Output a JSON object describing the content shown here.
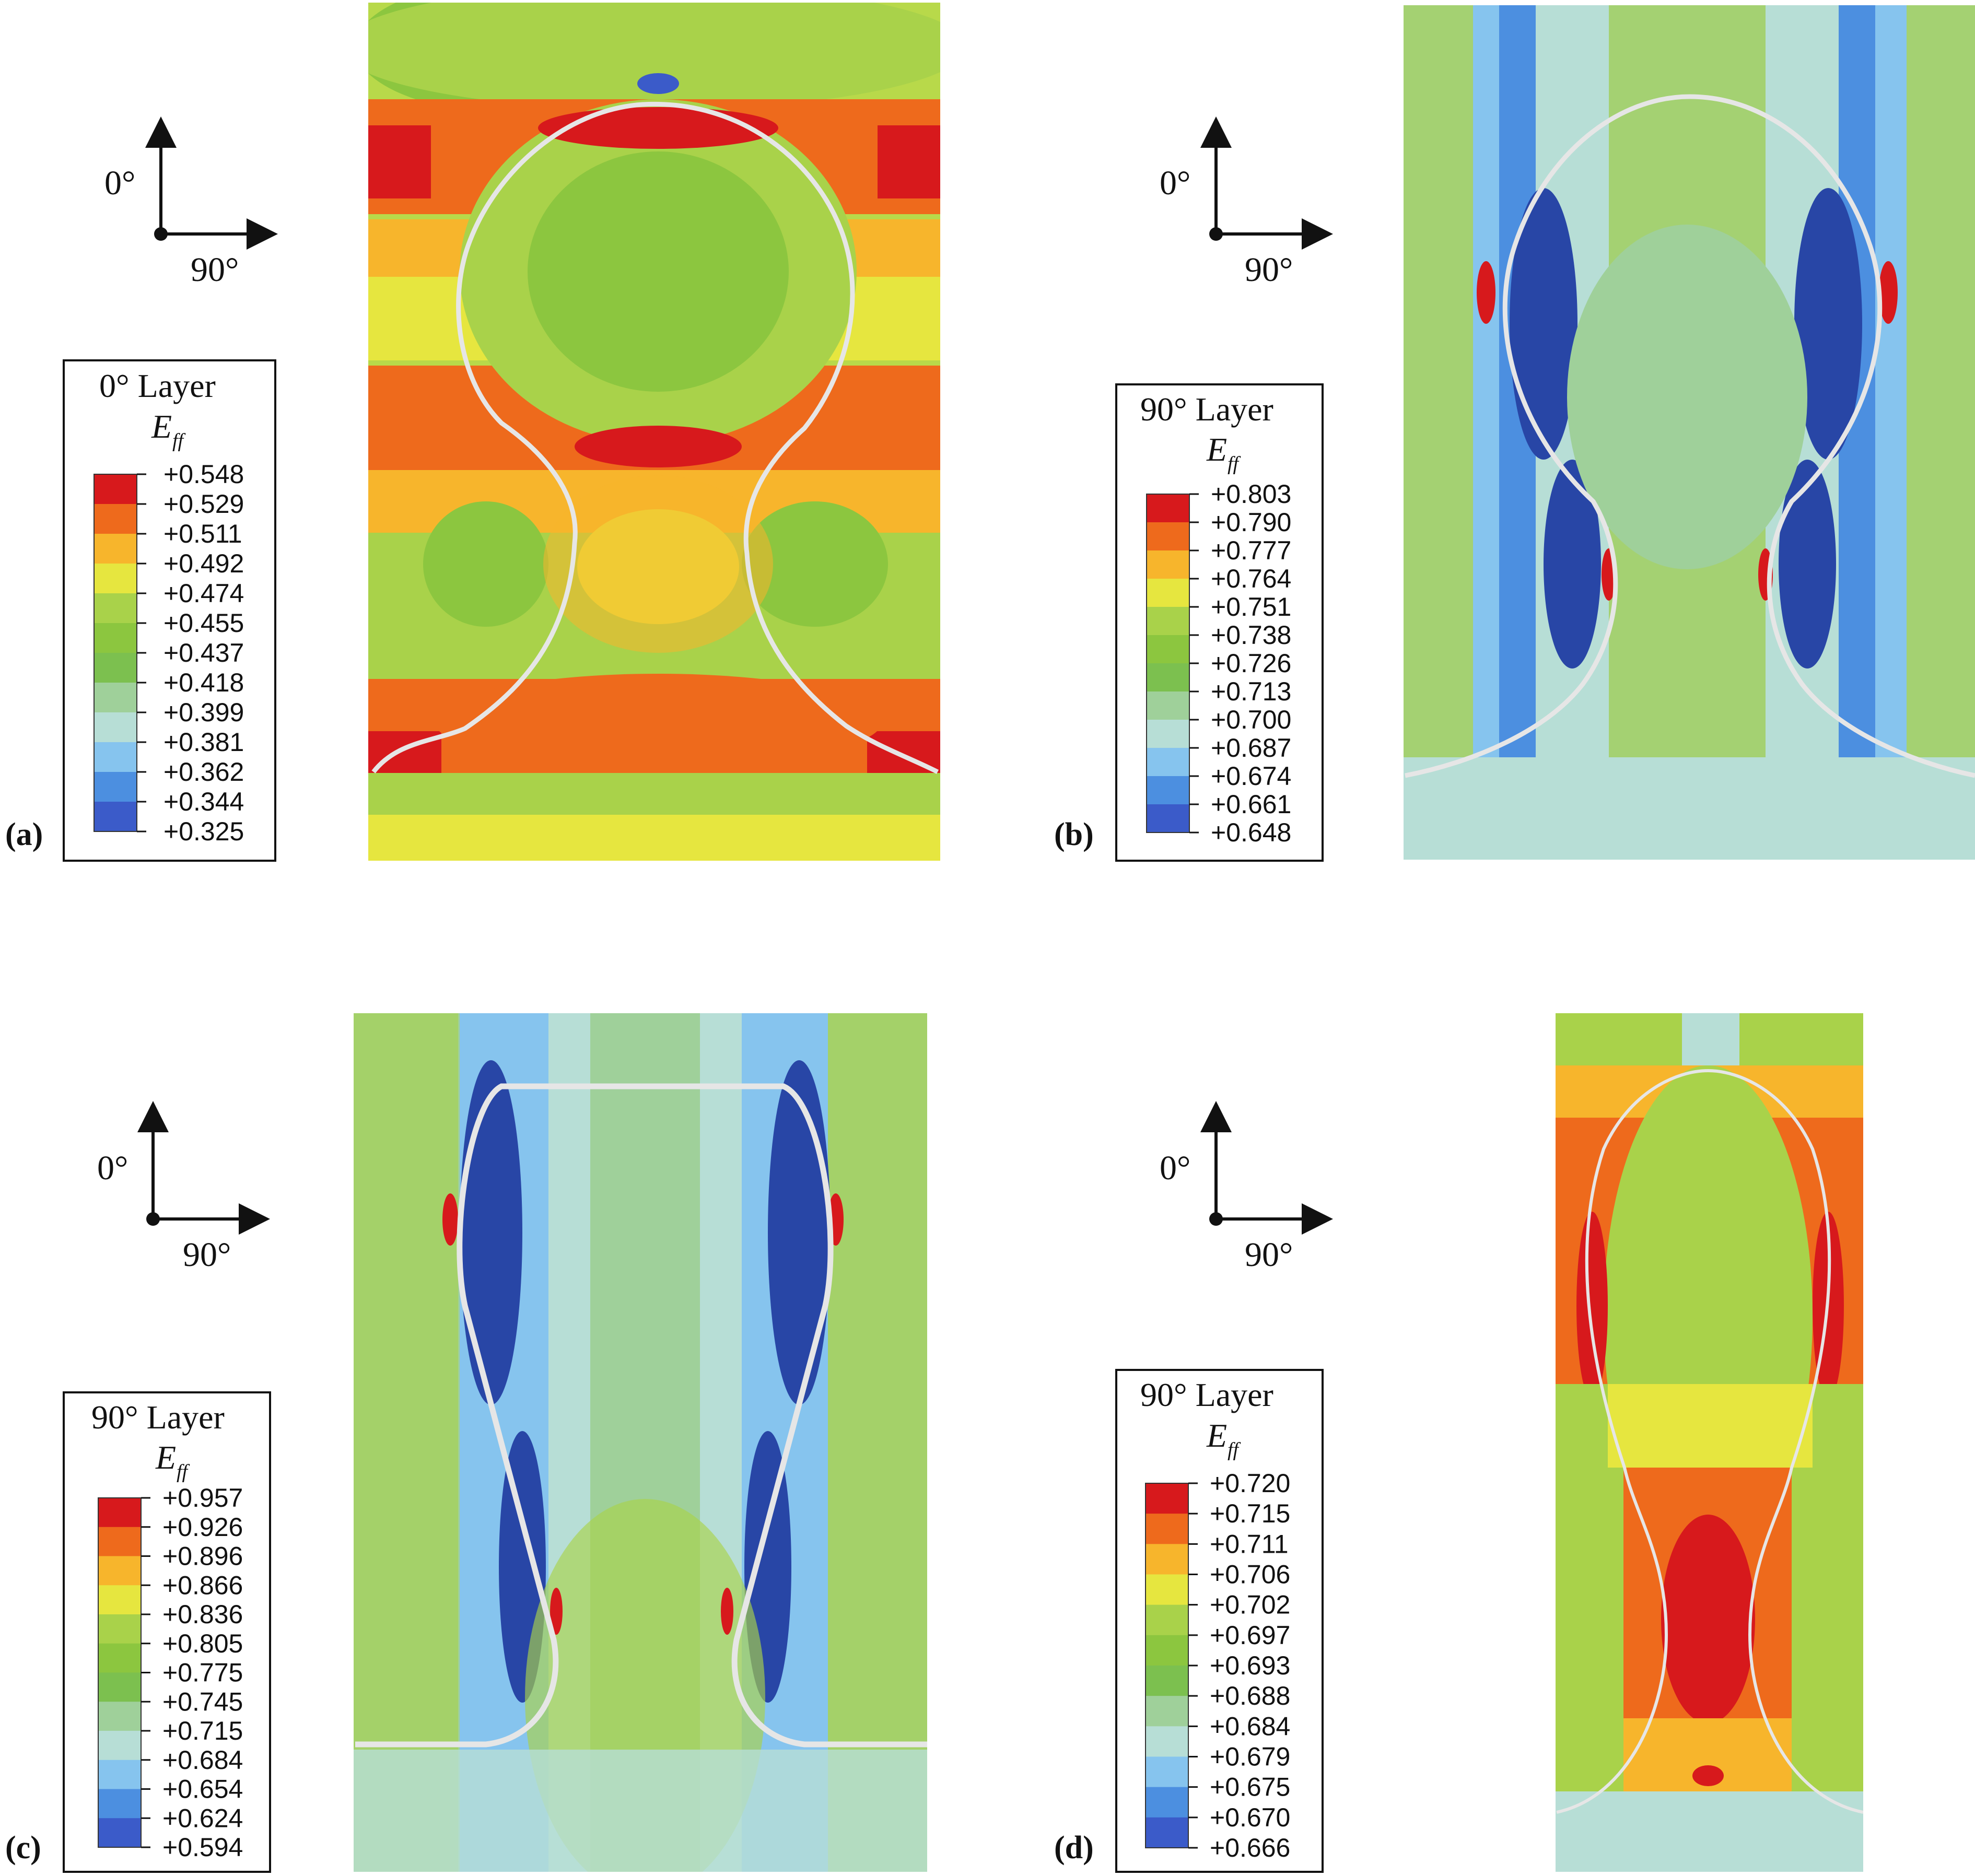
{
  "colors": {
    "contour": [
      "#d7191c",
      "#ee6a1c",
      "#f7b52c",
      "#e6e63f",
      "#a9d24a",
      "#8cc63f",
      "#7cc04f",
      "#9fd09a",
      "#b7ded6",
      "#86c4ee",
      "#4c8fe0",
      "#3b5bc9",
      "#2846a6"
    ],
    "outline": "#e6e6e6",
    "frame": "#111111"
  },
  "panels": [
    {
      "letter": "(a)",
      "axis": {
        "up": "0°",
        "right": "90°"
      },
      "legend": {
        "title": "0° Layer",
        "symbol": "E",
        "subscript": "ff",
        "values": [
          "+0.548",
          "+0.529",
          "+0.511",
          "+0.492",
          "+0.474",
          "+0.455",
          "+0.437",
          "+0.418",
          "+0.399",
          "+0.381",
          "+0.362",
          "+0.344",
          "+0.325"
        ]
      }
    },
    {
      "letter": "(b)",
      "axis": {
        "up": "0°",
        "right": "90°"
      },
      "legend": {
        "title": "90° Layer",
        "symbol": "E",
        "subscript": "ff",
        "values": [
          "+0.803",
          "+0.790",
          "+0.777",
          "+0.764",
          "+0.751",
          "+0.738",
          "+0.726",
          "+0.713",
          "+0.700",
          "+0.687",
          "+0.674",
          "+0.661",
          "+0.648"
        ]
      }
    },
    {
      "letter": "(c)",
      "axis": {
        "up": "0°",
        "right": "90°"
      },
      "legend": {
        "title": "90° Layer",
        "symbol": "E",
        "subscript": "ff",
        "values": [
          "+0.957",
          "+0.926",
          "+0.896",
          "+0.866",
          "+0.836",
          "+0.805",
          "+0.775",
          "+0.745",
          "+0.715",
          "+0.684",
          "+0.654",
          "+0.624",
          "+0.594"
        ]
      }
    },
    {
      "letter": "(d)",
      "axis": {
        "up": "0°",
        "right": "90°"
      },
      "legend": {
        "title": "90° Layer",
        "symbol": "E",
        "subscript": "ff",
        "values": [
          "+0.720",
          "+0.715",
          "+0.711",
          "+0.706",
          "+0.702",
          "+0.697",
          "+0.693",
          "+0.688",
          "+0.684",
          "+0.679",
          "+0.675",
          "+0.670",
          "+0.666"
        ]
      }
    }
  ]
}
